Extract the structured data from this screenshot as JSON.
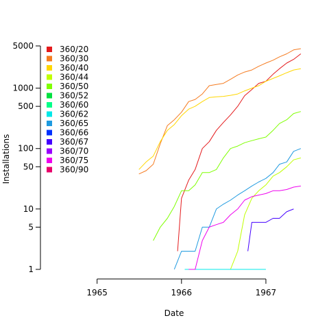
{
  "chart_data": {
    "type": "line",
    "title": "",
    "xlabel": "Date",
    "ylabel": "Installations",
    "x_type": "date",
    "xlim": [
      "1964-05-01",
      "1967-07-01"
    ],
    "ylim": [
      1,
      5000
    ],
    "y_scale": "log",
    "grid": false,
    "legend_position": "top-left",
    "x_ticks": [
      {
        "value": "1965-01-01",
        "label": "1965"
      },
      {
        "value": "1966-01-01",
        "label": "1966"
      },
      {
        "value": "1967-01-01",
        "label": "1967"
      }
    ],
    "y_ticks": [
      {
        "value": 1,
        "label": "1"
      },
      {
        "value": 5,
        "label": "5"
      },
      {
        "value": 10,
        "label": "10"
      },
      {
        "value": 50,
        "label": "50"
      },
      {
        "value": 100,
        "label": "100"
      },
      {
        "value": 500,
        "label": "500"
      },
      {
        "value": 1000,
        "label": "1000"
      },
      {
        "value": 5000,
        "label": "5000"
      }
    ],
    "series": [
      {
        "name": "360/20",
        "color": "#e41a1c",
        "points": [
          [
            "1965-12-15",
            2
          ],
          [
            "1966-01-01",
            15
          ],
          [
            "1966-02-01",
            30
          ],
          [
            "1966-03-01",
            45
          ],
          [
            "1966-04-01",
            100
          ],
          [
            "1966-05-01",
            130
          ],
          [
            "1966-06-01",
            200
          ],
          [
            "1966-07-01",
            270
          ],
          [
            "1966-08-01",
            360
          ],
          [
            "1966-09-01",
            500
          ],
          [
            "1966-10-01",
            750
          ],
          [
            "1966-11-01",
            950
          ],
          [
            "1966-12-01",
            1200
          ],
          [
            "1967-01-01",
            1300
          ],
          [
            "1967-02-01",
            1700
          ],
          [
            "1967-03-01",
            2100
          ],
          [
            "1967-04-01",
            2600
          ],
          [
            "1967-05-01",
            3000
          ],
          [
            "1967-06-01",
            3700
          ]
        ]
      },
      {
        "name": "360/30",
        "color": "#f57b20",
        "points": [
          [
            "1965-07-01",
            38
          ],
          [
            "1965-08-01",
            43
          ],
          [
            "1965-09-01",
            55
          ],
          [
            "1965-10-01",
            120
          ],
          [
            "1965-11-01",
            240
          ],
          [
            "1965-12-01",
            300
          ],
          [
            "1966-01-01",
            400
          ],
          [
            "1966-02-01",
            600
          ],
          [
            "1966-03-01",
            650
          ],
          [
            "1966-04-01",
            800
          ],
          [
            "1966-05-01",
            1100
          ],
          [
            "1966-06-01",
            1150
          ],
          [
            "1966-07-01",
            1200
          ],
          [
            "1966-08-01",
            1400
          ],
          [
            "1966-09-01",
            1650
          ],
          [
            "1966-10-01",
            1850
          ],
          [
            "1966-11-01",
            2000
          ],
          [
            "1966-12-01",
            2300
          ],
          [
            "1967-01-01",
            2600
          ],
          [
            "1967-02-01",
            2900
          ],
          [
            "1967-03-01",
            3300
          ],
          [
            "1967-04-01",
            3700
          ],
          [
            "1967-05-01",
            4300
          ],
          [
            "1967-06-01",
            4500
          ]
        ]
      },
      {
        "name": "360/40",
        "color": "#ffd700",
        "points": [
          [
            "1965-07-01",
            45
          ],
          [
            "1965-08-01",
            60
          ],
          [
            "1965-09-01",
            75
          ],
          [
            "1965-10-01",
            130
          ],
          [
            "1965-11-01",
            200
          ],
          [
            "1965-12-01",
            250
          ],
          [
            "1966-01-01",
            350
          ],
          [
            "1966-02-01",
            450
          ],
          [
            "1966-03-01",
            500
          ],
          [
            "1966-04-01",
            600
          ],
          [
            "1966-05-01",
            700
          ],
          [
            "1966-06-01",
            720
          ],
          [
            "1966-07-01",
            730
          ],
          [
            "1966-08-01",
            760
          ],
          [
            "1966-09-01",
            800
          ],
          [
            "1966-10-01",
            900
          ],
          [
            "1966-11-01",
            1000
          ],
          [
            "1966-12-01",
            1100
          ],
          [
            "1967-01-01",
            1300
          ],
          [
            "1967-02-01",
            1450
          ],
          [
            "1967-03-01",
            1600
          ],
          [
            "1967-04-01",
            1800
          ],
          [
            "1967-05-01",
            2000
          ],
          [
            "1967-06-01",
            2100
          ]
        ]
      },
      {
        "name": "360/44",
        "color": "#c0ff00",
        "points": [
          [
            "1966-06-01",
            1
          ],
          [
            "1966-08-01",
            1
          ],
          [
            "1966-09-01",
            2
          ],
          [
            "1966-10-01",
            8
          ],
          [
            "1966-11-01",
            15
          ],
          [
            "1966-12-01",
            20
          ],
          [
            "1967-01-01",
            25
          ],
          [
            "1967-02-01",
            35
          ],
          [
            "1967-03-01",
            40
          ],
          [
            "1967-04-01",
            50
          ],
          [
            "1967-05-01",
            65
          ],
          [
            "1967-06-01",
            70
          ]
        ]
      },
      {
        "name": "360/50",
        "color": "#7fff00",
        "points": [
          [
            "1965-09-01",
            3
          ],
          [
            "1965-10-01",
            5
          ],
          [
            "1965-11-01",
            7
          ],
          [
            "1965-12-01",
            11
          ],
          [
            "1966-01-01",
            20
          ],
          [
            "1966-02-01",
            20
          ],
          [
            "1966-03-01",
            25
          ],
          [
            "1966-04-01",
            40
          ],
          [
            "1966-05-01",
            40
          ],
          [
            "1966-06-01",
            45
          ],
          [
            "1966-07-01",
            70
          ],
          [
            "1966-08-01",
            100
          ],
          [
            "1966-09-01",
            110
          ],
          [
            "1966-10-01",
            125
          ],
          [
            "1966-11-01",
            135
          ],
          [
            "1966-12-01",
            145
          ],
          [
            "1967-01-01",
            155
          ],
          [
            "1967-02-01",
            200
          ],
          [
            "1967-03-01",
            260
          ],
          [
            "1967-04-01",
            300
          ],
          [
            "1967-05-01",
            380
          ],
          [
            "1967-06-01",
            410
          ]
        ]
      },
      {
        "name": "360/52",
        "color": "#00e040",
        "points": []
      },
      {
        "name": "360/60",
        "color": "#00ff88",
        "points": []
      },
      {
        "name": "360/62",
        "color": "#00e8e8",
        "points": [
          [
            "1966-01-15",
            1
          ],
          [
            "1966-04-01",
            1
          ],
          [
            "1966-06-01",
            1
          ],
          [
            "1966-08-01",
            1
          ],
          [
            "1966-10-01",
            1
          ],
          [
            "1966-12-01",
            1
          ],
          [
            "1967-01-01",
            1
          ]
        ]
      },
      {
        "name": "360/65",
        "color": "#1e9ae0",
        "points": [
          [
            "1965-12-01",
            1
          ],
          [
            "1966-01-01",
            2
          ],
          [
            "1966-02-01",
            2
          ],
          [
            "1966-03-01",
            2
          ],
          [
            "1966-04-01",
            5
          ],
          [
            "1966-05-01",
            5
          ],
          [
            "1966-06-01",
            10
          ],
          [
            "1966-07-01",
            12
          ],
          [
            "1966-08-01",
            14
          ],
          [
            "1966-09-01",
            17
          ],
          [
            "1966-10-01",
            20
          ],
          [
            "1966-11-01",
            24
          ],
          [
            "1966-12-01",
            28
          ],
          [
            "1967-01-01",
            32
          ],
          [
            "1967-02-01",
            40
          ],
          [
            "1967-03-01",
            55
          ],
          [
            "1967-04-01",
            60
          ],
          [
            "1967-05-01",
            90
          ],
          [
            "1967-06-01",
            100
          ]
        ]
      },
      {
        "name": "360/66",
        "color": "#0030ff",
        "points": []
      },
      {
        "name": "360/67",
        "color": "#4400ff",
        "points": [
          [
            "1966-10-15",
            2
          ],
          [
            "1966-11-01",
            6
          ],
          [
            "1966-12-01",
            6
          ],
          [
            "1967-01-01",
            6
          ],
          [
            "1967-02-01",
            7
          ],
          [
            "1967-03-01",
            7
          ],
          [
            "1967-04-01",
            9
          ],
          [
            "1967-05-01",
            10
          ]
        ]
      },
      {
        "name": "360/70",
        "color": "#9900ff",
        "points": []
      },
      {
        "name": "360/75",
        "color": "#ee00ee",
        "points": [
          [
            "1966-02-01",
            1
          ],
          [
            "1966-03-01",
            1
          ],
          [
            "1966-04-01",
            3
          ],
          [
            "1966-05-01",
            5
          ],
          [
            "1966-06-01",
            5.5
          ],
          [
            "1966-07-01",
            6
          ],
          [
            "1966-08-01",
            8
          ],
          [
            "1966-09-01",
            10
          ],
          [
            "1966-10-01",
            14
          ],
          [
            "1966-11-01",
            16
          ],
          [
            "1966-12-01",
            17
          ],
          [
            "1967-01-01",
            18
          ],
          [
            "1967-02-01",
            20
          ],
          [
            "1967-03-01",
            20
          ],
          [
            "1967-04-01",
            21
          ],
          [
            "1967-05-01",
            23
          ],
          [
            "1967-06-01",
            24
          ]
        ]
      },
      {
        "name": "360/90",
        "color": "#e8006a",
        "points": []
      }
    ]
  }
}
